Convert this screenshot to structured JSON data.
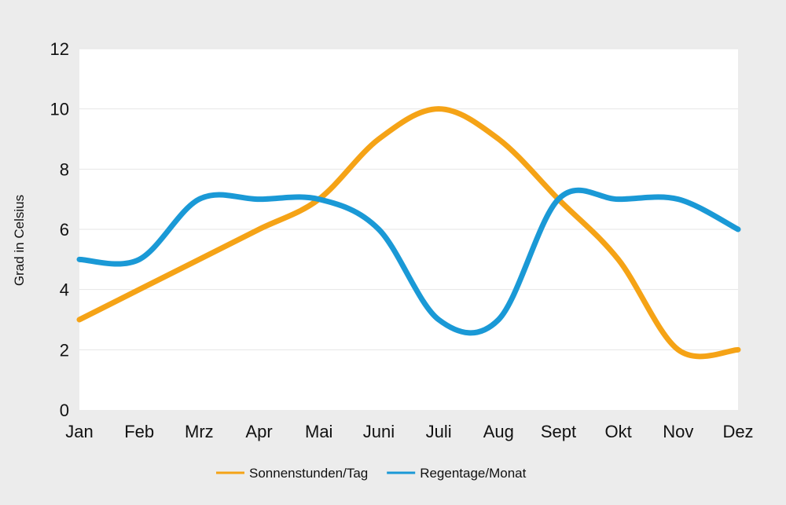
{
  "chart_data": {
    "type": "line",
    "title": "",
    "xlabel": "",
    "ylabel": "Grad in Celsius",
    "ylim": [
      0,
      12
    ],
    "yticks": [
      0,
      2,
      4,
      6,
      8,
      10,
      12
    ],
    "grid": true,
    "smooth": true,
    "legend_position": "bottom-center",
    "categories": [
      "Jan",
      "Feb",
      "Mrz",
      "Apr",
      "Mai",
      "Juni",
      "Juli",
      "Aug",
      "Sept",
      "Okt",
      "Nov",
      "Dez"
    ],
    "series": [
      {
        "name": "Sonnenstunden/Tag",
        "color": "#f5a316",
        "values": [
          3,
          4,
          5,
          6,
          7,
          9,
          10,
          9,
          7,
          5,
          2,
          2
        ]
      },
      {
        "name": "Regentage/Monat",
        "color": "#1a99d6",
        "values": [
          5,
          5,
          7,
          7,
          7,
          6,
          3,
          3,
          7,
          7,
          7,
          6
        ]
      }
    ]
  },
  "colors": {
    "background": "#ececec",
    "plot_background": "#ffffff",
    "grid": "#e6e6e6"
  }
}
